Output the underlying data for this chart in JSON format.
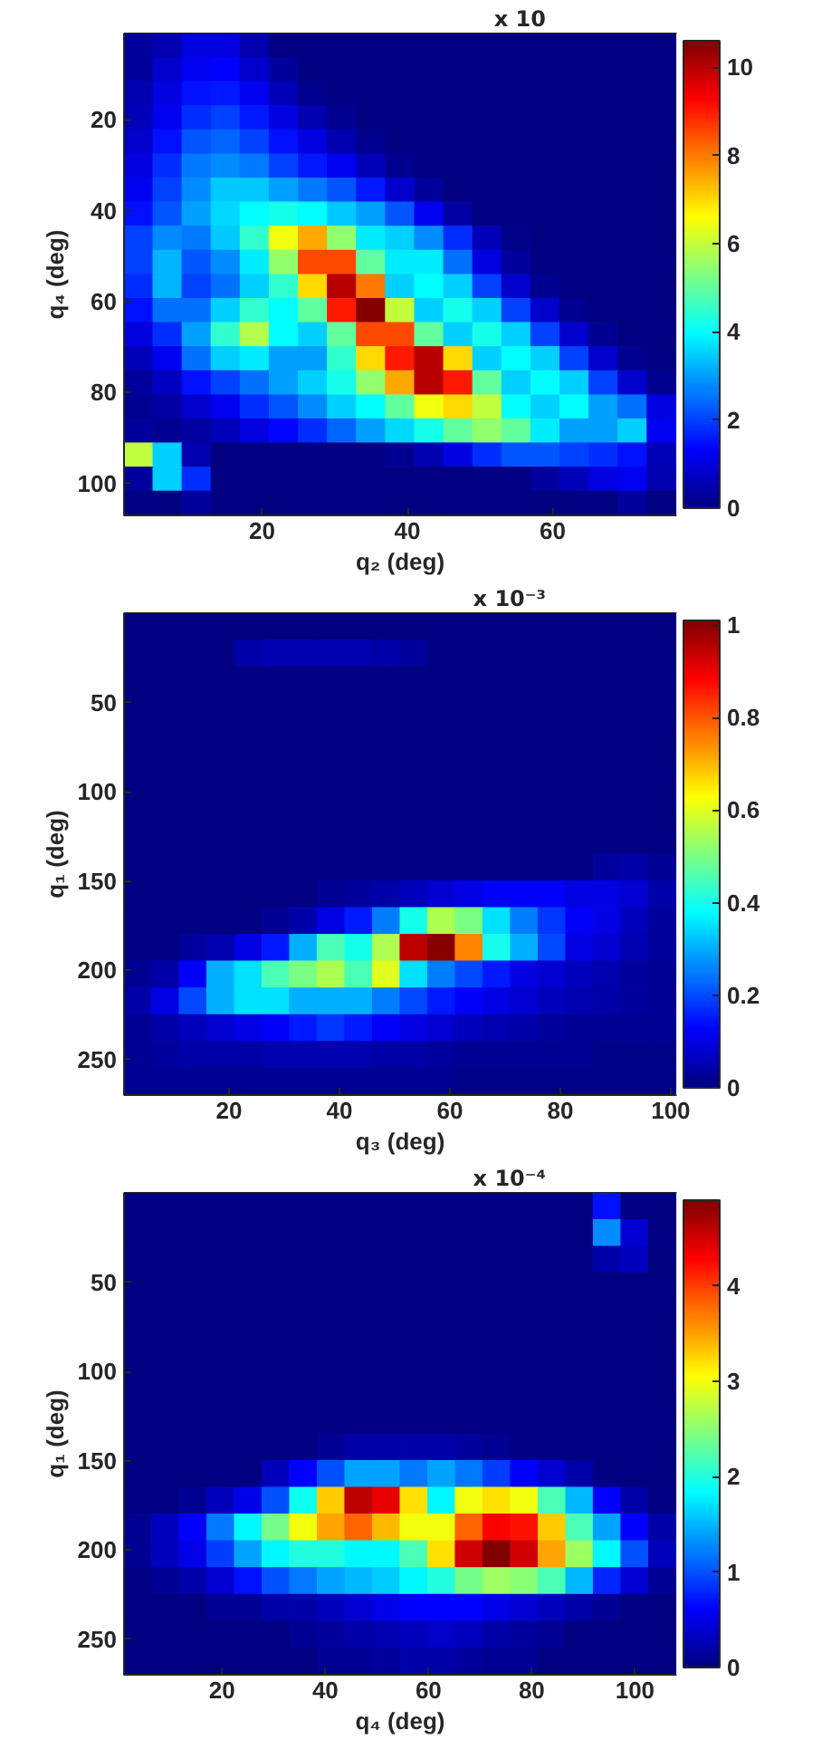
{
  "chart_data": [
    {
      "type": "heatmap",
      "xlabel": "q₂ (deg)",
      "ylabel": "q₄ (deg)",
      "clabel": "x 10",
      "x": [
        3,
        7,
        11,
        15,
        19,
        23,
        27,
        31,
        35,
        39,
        43,
        47,
        51,
        55,
        59,
        63,
        67,
        71,
        75
      ],
      "y": [
        3.65,
        8.95,
        14.25,
        19.55,
        24.85,
        30.15,
        35.45,
        40.75,
        46.05,
        51.35,
        56.65,
        61.95,
        67.25,
        72.55,
        77.85,
        83.15,
        88.45,
        93.75,
        99.05,
        104.35
      ],
      "cells": [
        [
          0.3,
          0.5,
          1,
          1,
          0.5,
          0,
          0,
          0,
          0,
          0,
          0,
          0,
          0,
          0,
          0,
          0,
          0,
          0,
          0
        ],
        [
          0.3,
          0.8,
          1.2,
          1.3,
          0.8,
          0.3,
          0,
          0,
          0,
          0,
          0,
          0,
          0,
          0,
          0,
          0,
          0,
          0,
          0
        ],
        [
          0.5,
          1,
          1.5,
          1.6,
          1.2,
          0.6,
          0.2,
          0,
          0,
          0,
          0,
          0,
          0,
          0,
          0,
          0,
          0,
          0,
          0
        ],
        [
          0.6,
          1.2,
          1.8,
          2,
          1.6,
          1,
          0.5,
          0.2,
          0,
          0,
          0,
          0,
          0,
          0,
          0,
          0,
          0,
          0,
          0
        ],
        [
          0.8,
          1.5,
          2.2,
          2.4,
          2,
          1.5,
          1,
          0.5,
          0.2,
          0,
          0,
          0,
          0,
          0,
          0,
          0,
          0,
          0,
          0
        ],
        [
          1,
          1.8,
          2.6,
          2.8,
          2.6,
          2,
          1.6,
          1.2,
          0.6,
          0.2,
          0,
          0,
          0,
          0,
          0,
          0,
          0,
          0,
          0
        ],
        [
          1.2,
          2,
          2.8,
          3.4,
          3.4,
          3,
          2.6,
          2.2,
          1.6,
          0.8,
          0.3,
          0,
          0,
          0,
          0,
          0,
          0,
          0,
          0
        ],
        [
          1.5,
          2.2,
          3,
          3.6,
          4,
          4.2,
          4,
          3.4,
          3,
          2.2,
          1.2,
          0.4,
          0,
          0,
          0,
          0,
          0,
          0,
          0
        ],
        [
          2,
          2.8,
          2.6,
          3.4,
          4.5,
          6.5,
          7.5,
          5.5,
          3.8,
          3.5,
          2.8,
          1.8,
          0.6,
          0.1,
          0,
          0,
          0,
          0,
          0
        ],
        [
          2,
          3.2,
          2.2,
          2.8,
          3.8,
          5.5,
          8.5,
          8.5,
          5,
          3.8,
          3.8,
          2.5,
          1,
          0.3,
          0,
          0,
          0,
          0,
          0
        ],
        [
          1.8,
          3.2,
          2,
          2.5,
          3.5,
          4.5,
          7,
          10,
          8,
          3.5,
          4,
          3.5,
          2,
          0.8,
          0.2,
          0,
          0,
          0,
          0
        ],
        [
          1.5,
          2.5,
          2.5,
          3.5,
          4.5,
          4,
          5,
          9,
          10.5,
          6,
          3.5,
          4.2,
          3.5,
          2,
          0.8,
          0.2,
          0,
          0,
          0
        ],
        [
          1,
          1.8,
          3,
          4.5,
          5.8,
          4,
          3.5,
          5,
          8.5,
          8.5,
          5,
          3.5,
          4.2,
          3.5,
          2,
          0.8,
          0.2,
          0,
          0
        ],
        [
          0.6,
          1.2,
          2.5,
          3.5,
          3.8,
          3,
          3,
          4.5,
          7,
          9,
          10,
          7,
          3.5,
          4,
          3.5,
          2,
          0.8,
          0.2,
          0
        ],
        [
          0.3,
          0.7,
          1.5,
          2,
          2.5,
          3,
          3.5,
          4.2,
          5.5,
          7.5,
          10,
          9,
          5,
          3.5,
          4,
          3.5,
          2,
          0.8,
          0.2
        ],
        [
          0.2,
          0.4,
          0.8,
          1.2,
          1.8,
          2.2,
          2.8,
          3.5,
          4,
          5,
          6.5,
          7,
          6,
          4,
          3.5,
          4,
          3,
          2.5,
          1
        ],
        [
          0.3,
          0.2,
          0.4,
          0.6,
          1,
          1.4,
          1.8,
          2.4,
          3,
          3.6,
          4.2,
          5,
          5.5,
          5,
          3.8,
          3,
          3,
          3.5,
          1.2
        ],
        [
          6,
          3.5,
          0.5,
          0,
          0,
          0,
          0,
          0,
          0,
          0.2,
          0.5,
          1,
          1.8,
          2.2,
          2.2,
          2,
          1.8,
          1.5,
          0.6
        ],
        [
          0.3,
          3.5,
          1.8,
          0,
          0,
          0,
          0,
          0,
          0,
          0,
          0,
          0,
          0,
          0,
          0.3,
          0.6,
          1,
          1.2,
          0.5
        ],
        [
          0,
          0,
          0.3,
          0,
          0,
          0,
          0,
          0,
          0,
          0,
          0,
          0,
          0,
          0,
          0,
          0,
          0,
          0.3,
          0
        ]
      ],
      "xlim": [
        1,
        77
      ],
      "ylim": [
        107,
        1
      ],
      "xticks": [
        20,
        40,
        60
      ],
      "yticks": [
        20,
        40,
        60,
        80,
        100
      ],
      "clim": [
        0,
        10.6
      ],
      "cticks": [
        0,
        2,
        4,
        6,
        8,
        10
      ]
    },
    {
      "type": "heatmap",
      "xlabel": "q₃ (deg)",
      "ylabel": "q₁ (deg)",
      "clabel": "x 10⁻³",
      "x": [
        3.5,
        8.5,
        13.5,
        18.5,
        23.5,
        28.5,
        33.5,
        38.5,
        43.5,
        48.5,
        53.5,
        58.5,
        63.5,
        68.5,
        73.5,
        78.5,
        83.5,
        88.5,
        93.5,
        98.5
      ],
      "y": [
        7.5,
        22.5,
        37.5,
        52.5,
        67.5,
        82.5,
        97.5,
        112.5,
        127.5,
        142.5,
        157.5,
        172.5,
        187.5,
        202.5,
        217.5,
        232.5,
        247.5,
        262.5
      ],
      "cells": [
        [
          0,
          0,
          0,
          0,
          0,
          0,
          0,
          0,
          0,
          0,
          0,
          0,
          0,
          0,
          0,
          0,
          0,
          0,
          0,
          0
        ],
        [
          0,
          0,
          0,
          0,
          0.04,
          0.05,
          0.05,
          0.05,
          0.05,
          0.04,
          0.03,
          0,
          0,
          0,
          0,
          0,
          0,
          0,
          0,
          0
        ],
        [
          0,
          0,
          0,
          0,
          0,
          0,
          0,
          0,
          0,
          0,
          0,
          0,
          0,
          0,
          0,
          0,
          0,
          0,
          0,
          0
        ],
        [
          0,
          0,
          0,
          0,
          0,
          0,
          0,
          0,
          0,
          0,
          0,
          0,
          0,
          0,
          0,
          0,
          0,
          0,
          0,
          0
        ],
        [
          0,
          0,
          0,
          0,
          0,
          0,
          0,
          0,
          0,
          0,
          0,
          0,
          0,
          0,
          0,
          0,
          0,
          0,
          0,
          0
        ],
        [
          0,
          0,
          0,
          0,
          0,
          0,
          0,
          0,
          0,
          0,
          0,
          0,
          0,
          0,
          0,
          0,
          0,
          0,
          0,
          0
        ],
        [
          0,
          0,
          0,
          0,
          0,
          0,
          0,
          0,
          0,
          0,
          0,
          0,
          0,
          0,
          0,
          0,
          0,
          0,
          0,
          0
        ],
        [
          0,
          0,
          0,
          0,
          0,
          0,
          0,
          0,
          0,
          0,
          0,
          0,
          0,
          0,
          0,
          0,
          0,
          0,
          0,
          0
        ],
        [
          0,
          0,
          0,
          0,
          0,
          0,
          0,
          0,
          0,
          0,
          0,
          0,
          0,
          0,
          0,
          0,
          0,
          0,
          0,
          0
        ],
        [
          0,
          0,
          0,
          0,
          0,
          0,
          0,
          0,
          0,
          0,
          0,
          0,
          0,
          0,
          0,
          0,
          0,
          0.03,
          0.04,
          0.02
        ],
        [
          0,
          0,
          0,
          0,
          0,
          0,
          0,
          0.02,
          0.03,
          0.04,
          0.06,
          0.08,
          0.1,
          0.12,
          0.12,
          0.12,
          0.1,
          0.1,
          0.08,
          0.04
        ],
        [
          0,
          0,
          0,
          0,
          0,
          0.02,
          0.04,
          0.1,
          0.15,
          0.25,
          0.4,
          0.55,
          0.5,
          0.35,
          0.25,
          0.18,
          0.12,
          0.1,
          0.06,
          0.03
        ],
        [
          0,
          0,
          0.03,
          0.05,
          0.1,
          0.15,
          0.3,
          0.45,
          0.4,
          0.55,
          0.95,
          1,
          0.75,
          0.4,
          0.3,
          0.2,
          0.1,
          0.08,
          0.05,
          0.03
        ],
        [
          0.02,
          0.04,
          0.12,
          0.3,
          0.35,
          0.45,
          0.5,
          0.55,
          0.45,
          0.6,
          0.35,
          0.25,
          0.2,
          0.15,
          0.1,
          0.08,
          0.06,
          0.05,
          0.03,
          0.02
        ],
        [
          0.04,
          0.1,
          0.2,
          0.3,
          0.35,
          0.35,
          0.3,
          0.3,
          0.3,
          0.25,
          0.2,
          0.15,
          0.12,
          0.1,
          0.08,
          0.06,
          0.05,
          0.04,
          0.03,
          0.02
        ],
        [
          0.02,
          0.04,
          0.06,
          0.08,
          0.1,
          0.12,
          0.15,
          0.18,
          0.15,
          0.12,
          0.1,
          0.08,
          0.06,
          0.05,
          0.04,
          0.03,
          0.02,
          0.02,
          0.02,
          0.02
        ],
        [
          0.02,
          0.03,
          0.04,
          0.04,
          0.04,
          0.05,
          0.05,
          0.05,
          0.05,
          0.04,
          0.04,
          0.03,
          0.02,
          0.02,
          0.02,
          0.02,
          0.02,
          0.01,
          0.01,
          0.01
        ],
        [
          0.02,
          0.02,
          0.02,
          0.02,
          0.02,
          0.02,
          0.02,
          0.02,
          0.02,
          0.02,
          0.02,
          0.02,
          0.01,
          0.01,
          0.01,
          0.01,
          0.01,
          0.01,
          0.01,
          0.01
        ]
      ],
      "xlim": [
        1,
        101
      ],
      "ylim": [
        270,
        0
      ],
      "xticks": [
        20,
        40,
        60,
        80,
        100
      ],
      "yticks": [
        50,
        100,
        150,
        200,
        250
      ],
      "clim": [
        0,
        1.01
      ],
      "cticks": [
        0,
        0.2,
        0.4,
        0.6,
        0.8,
        1
      ]
    },
    {
      "type": "heatmap",
      "xlabel": "q₄ (deg)",
      "ylabel": "q₁ (deg)",
      "clabel": "x 10⁻⁴",
      "x": [
        3.68,
        9.03,
        14.38,
        19.73,
        25.08,
        30.43,
        35.78,
        41.13,
        46.48,
        51.83,
        57.18,
        62.53,
        67.88,
        73.23,
        78.58,
        83.93,
        89.28,
        94.63,
        99.98,
        105.33
      ],
      "y": [
        7.5,
        22.5,
        37.5,
        52.5,
        67.5,
        82.5,
        97.5,
        112.5,
        127.5,
        142.5,
        157.5,
        172.5,
        187.5,
        202.5,
        217.5,
        232.5,
        247.5,
        262.5
      ],
      "cells": [
        [
          0,
          0,
          0,
          0,
          0,
          0,
          0,
          0,
          0,
          0,
          0,
          0,
          0,
          0,
          0,
          0,
          0,
          0.7,
          0,
          0
        ],
        [
          0,
          0,
          0,
          0,
          0,
          0,
          0,
          0,
          0,
          0,
          0,
          0,
          0,
          0,
          0,
          0,
          0,
          1.3,
          0.4,
          0
        ],
        [
          0,
          0,
          0,
          0,
          0,
          0,
          0,
          0,
          0,
          0,
          0,
          0,
          0,
          0,
          0,
          0,
          0,
          0.2,
          0.3,
          0
        ],
        [
          0,
          0,
          0,
          0,
          0,
          0,
          0,
          0,
          0,
          0,
          0,
          0,
          0,
          0,
          0,
          0,
          0,
          0,
          0,
          0
        ],
        [
          0,
          0,
          0,
          0,
          0,
          0,
          0,
          0,
          0,
          0,
          0,
          0,
          0,
          0,
          0,
          0,
          0,
          0,
          0,
          0
        ],
        [
          0,
          0,
          0,
          0,
          0,
          0,
          0,
          0,
          0,
          0,
          0,
          0,
          0,
          0,
          0,
          0,
          0,
          0,
          0,
          0
        ],
        [
          0,
          0,
          0,
          0,
          0,
          0,
          0,
          0,
          0,
          0,
          0,
          0,
          0,
          0,
          0,
          0,
          0,
          0,
          0,
          0
        ],
        [
          0,
          0,
          0,
          0,
          0,
          0,
          0,
          0,
          0,
          0,
          0,
          0,
          0,
          0,
          0,
          0,
          0,
          0,
          0,
          0
        ],
        [
          0,
          0,
          0,
          0,
          0,
          0,
          0,
          0,
          0,
          0,
          0,
          0,
          0,
          0,
          0,
          0,
          0,
          0,
          0,
          0
        ],
        [
          0,
          0,
          0,
          0,
          0,
          0,
          0,
          0.1,
          0.2,
          0.2,
          0.2,
          0.2,
          0.15,
          0.1,
          0,
          0,
          0,
          0,
          0,
          0
        ],
        [
          0,
          0,
          0,
          0,
          0,
          0.3,
          0.6,
          1,
          1.4,
          1.4,
          1.2,
          1.4,
          1.2,
          0.9,
          0.6,
          0.4,
          0.2,
          0,
          0,
          0
        ],
        [
          0,
          0,
          0.1,
          0.3,
          0.5,
          1,
          1.9,
          3.3,
          4.6,
          4.4,
          3.2,
          1.8,
          3,
          3.2,
          3,
          2.2,
          1.5,
          0.6,
          0.2,
          0
        ],
        [
          0.1,
          0.3,
          0.6,
          1.2,
          1.8,
          2.4,
          3,
          3.5,
          3.8,
          3.4,
          3,
          3,
          3.8,
          4.3,
          4.2,
          3.3,
          2.2,
          1.4,
          0.6,
          0.2
        ],
        [
          0.1,
          0.3,
          0.5,
          0.9,
          1.4,
          1.8,
          2,
          2,
          1.8,
          1.8,
          2.2,
          3.2,
          4.5,
          4.9,
          4.5,
          3.5,
          2.6,
          1.8,
          1,
          0.3
        ],
        [
          0,
          0.1,
          0.2,
          0.4,
          0.7,
          1,
          1.2,
          1.4,
          1.5,
          1.6,
          1.8,
          2,
          2.4,
          2.6,
          2.5,
          2.2,
          1.5,
          0.8,
          0.4,
          0.1
        ],
        [
          0,
          0,
          0,
          0.1,
          0.1,
          0.2,
          0.2,
          0.3,
          0.4,
          0.5,
          0.6,
          0.6,
          0.6,
          0.5,
          0.4,
          0.3,
          0.2,
          0.1,
          0,
          0
        ],
        [
          0,
          0,
          0,
          0,
          0,
          0,
          0.1,
          0.15,
          0.2,
          0.25,
          0.3,
          0.35,
          0.3,
          0.2,
          0.15,
          0.1,
          0,
          0,
          0,
          0
        ],
        [
          0,
          0,
          0,
          0,
          0,
          0,
          0,
          0.1,
          0.1,
          0.15,
          0.2,
          0.2,
          0.15,
          0.1,
          0.1,
          0,
          0,
          0,
          0,
          0
        ]
      ],
      "xlim": [
        1,
        108
      ],
      "ylim": [
        270,
        0
      ],
      "xticks": [
        20,
        40,
        60,
        80,
        100
      ],
      "yticks": [
        50,
        100,
        150,
        200,
        250
      ],
      "clim": [
        0,
        4.9
      ],
      "cticks": [
        0,
        1,
        2,
        3,
        4
      ]
    }
  ]
}
